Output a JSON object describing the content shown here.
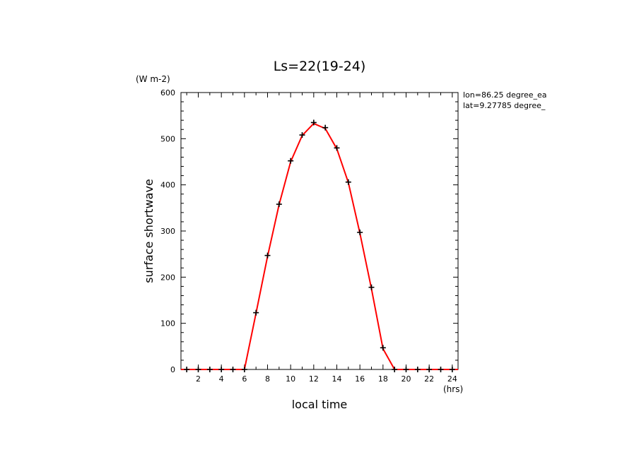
{
  "chart_data": {
    "type": "line",
    "title": "Ls=22(19-24)",
    "xlabel": "local time",
    "ylabel": "surface shortwave",
    "x_unit": "(hrs)",
    "y_unit": "(W m-2)",
    "xlim": [
      0.5,
      24.5
    ],
    "ylim": [
      0,
      600
    ],
    "x_ticks": [
      2,
      4,
      6,
      8,
      10,
      12,
      14,
      16,
      18,
      20,
      22,
      24
    ],
    "y_ticks": [
      0,
      100,
      200,
      300,
      400,
      500,
      600
    ],
    "annotations": [
      "lon=86.25 degree_ea",
      "lat=9.27785 degree_"
    ],
    "grid": false,
    "line_color": "#ff0000",
    "marker_color": "#000000",
    "series": [
      {
        "style": "line",
        "x": [
          0.5,
          1,
          2,
          3,
          4,
          5,
          6,
          7,
          8,
          9,
          10,
          11,
          12,
          13,
          14,
          15,
          16,
          17,
          18,
          19,
          20,
          21,
          22,
          23,
          24,
          24.5
        ],
        "values": [
          0,
          0,
          0,
          0,
          0,
          0,
          0,
          122,
          245,
          357,
          450,
          507,
          533,
          522,
          478,
          405,
          295,
          175,
          45,
          0,
          0,
          0,
          0,
          0,
          0,
          0
        ]
      },
      {
        "style": "markers",
        "x": [
          1,
          2,
          3,
          4,
          5,
          6,
          7,
          8,
          9,
          10,
          11,
          12,
          13,
          14,
          15,
          16,
          17,
          18,
          19,
          20,
          21,
          22,
          23,
          24
        ],
        "values": [
          0,
          0,
          0,
          0,
          0,
          0,
          123,
          247,
          358,
          452,
          508,
          535,
          524,
          480,
          406,
          297,
          178,
          47,
          0,
          0,
          0,
          0,
          0,
          0
        ]
      }
    ]
  }
}
